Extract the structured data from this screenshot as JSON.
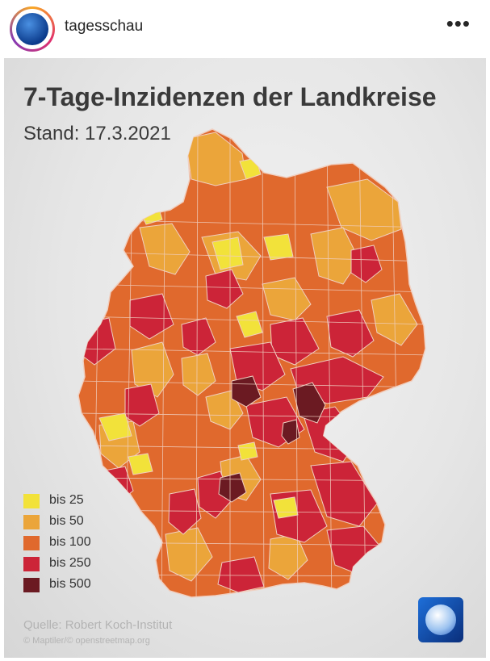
{
  "header": {
    "username": "tagesschau",
    "more_icon": "more-horizontal-icon",
    "more_glyph": "•••"
  },
  "map": {
    "title": "7-Tage-Inzidenzen der Landkreise",
    "subtitle": "Stand: 17.3.2021",
    "region": "Germany (Landkreise)",
    "legend": [
      {
        "label": "bis 25",
        "color": "#f2e23a"
      },
      {
        "label": "bis 50",
        "color": "#eba53a"
      },
      {
        "label": "bis 100",
        "color": "#e0692d"
      },
      {
        "label": "bis 250",
        "color": "#cc2438"
      },
      {
        "label": "bis 500",
        "color": "#6b1a22"
      }
    ],
    "source": "Quelle: Robert Koch-Institut",
    "attribution": "© Maptiler/© openstreetmap.org",
    "logo_icon": "tagesschau-logo-icon"
  },
  "colors": {
    "border": "#f0cfc0",
    "background": "#e6e6e6"
  }
}
